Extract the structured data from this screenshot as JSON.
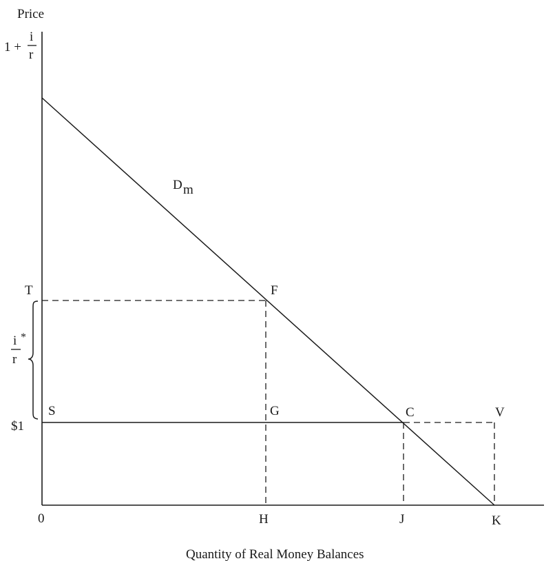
{
  "axes": {
    "y_label": "Price",
    "x_label": "Quantity of Real Money Balances",
    "origin_label": "0"
  },
  "y_ticks": {
    "top": {
      "prefix": "1 + ",
      "numerator": "i",
      "denominator": "r"
    },
    "one_dollar": "$1"
  },
  "brace": {
    "numerator": "i",
    "denominator": "r",
    "superscript": "*"
  },
  "curve": {
    "name": "D",
    "subscript": "m"
  },
  "points": {
    "T": "T",
    "F": "F",
    "S": "S",
    "G": "G",
    "C": "C",
    "V": "V",
    "H": "H",
    "J": "J",
    "K": "K"
  }
}
